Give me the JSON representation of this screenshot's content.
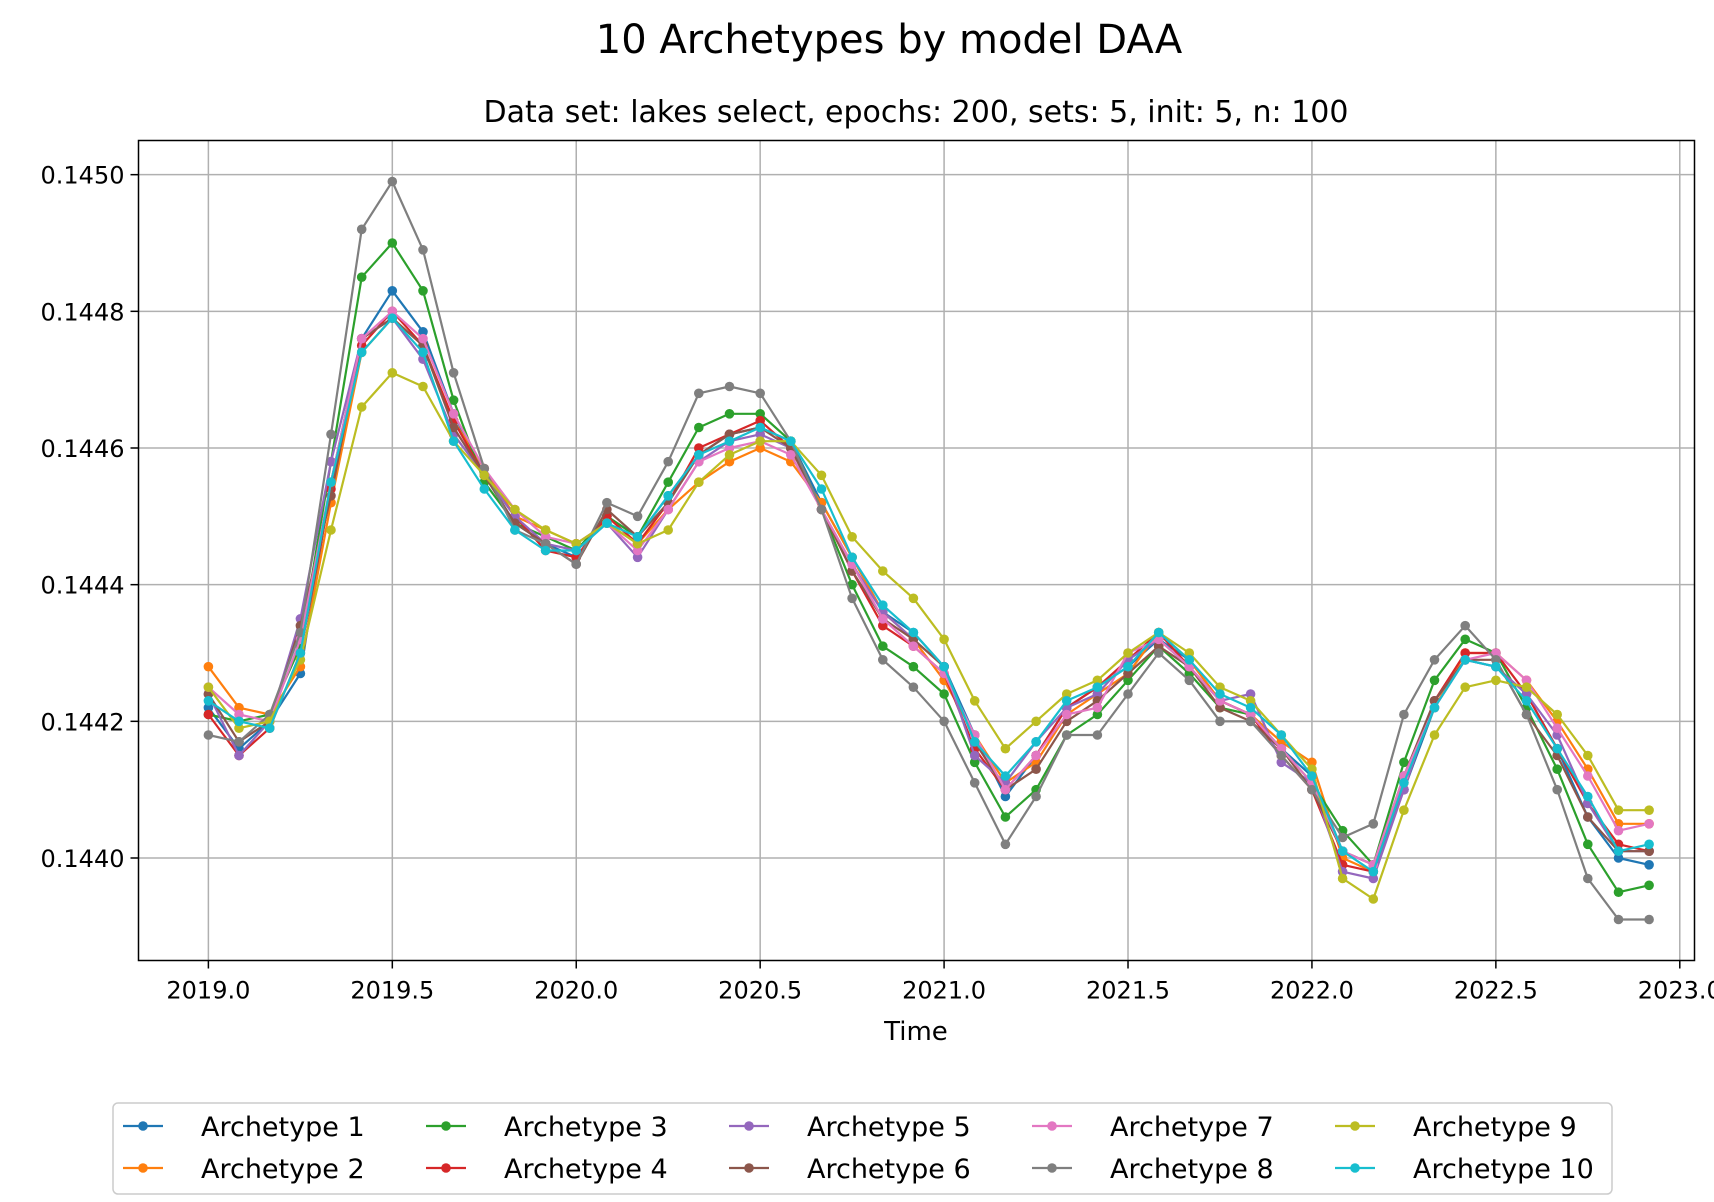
{
  "chart_data": {
    "type": "line",
    "title": "10 Archetypes by model DAA",
    "subtitle": "Data set: lakes select, epochs: 200, sets: 5, init: 5, n: 100",
    "xlabel": "Time",
    "ylabel": "",
    "xlim": [
      2018.81,
      2023.04
    ],
    "ylim": [
      0.14385,
      0.14505
    ],
    "xticks": [
      "2019.0",
      "2019.5",
      "2020.0",
      "2020.5",
      "2021.0",
      "2021.5",
      "2022.0",
      "2022.5",
      "2023.0"
    ],
    "yticks": [
      "0.1440",
      "0.1442",
      "0.1444",
      "0.1446",
      "0.1448",
      "0.1450"
    ],
    "grid": true,
    "legend_position": "bottom-center",
    "x": [
      2019.0,
      2019.0833,
      2019.1667,
      2019.25,
      2019.3333,
      2019.4167,
      2019.5,
      2019.5833,
      2019.6667,
      2019.75,
      2019.8333,
      2019.9167,
      2020.0,
      2020.0833,
      2020.1667,
      2020.25,
      2020.3333,
      2020.4167,
      2020.5,
      2020.5833,
      2020.6667,
      2020.75,
      2020.8333,
      2020.9167,
      2021.0,
      2021.0833,
      2021.1667,
      2021.25,
      2021.3333,
      2021.4167,
      2021.5,
      2021.5833,
      2021.6667,
      2021.75,
      2021.8333,
      2021.9167,
      2022.0,
      2022.0833,
      2022.1667,
      2022.25,
      2022.3333,
      2022.4167,
      2022.5,
      2022.5833,
      2022.6667,
      2022.75,
      2022.8333,
      2022.9167
    ],
    "series": [
      {
        "name": "Archetype 1",
        "color": "#1f77b4",
        "values": [
          0.14422,
          0.14416,
          0.1442,
          0.14427,
          0.14455,
          0.14476,
          0.14483,
          0.14477,
          0.14465,
          0.14456,
          0.14449,
          0.14446,
          0.14444,
          0.1445,
          0.14447,
          0.14453,
          0.14459,
          0.14462,
          0.14463,
          0.14461,
          0.14452,
          0.14444,
          0.14436,
          0.14433,
          0.14428,
          0.14418,
          0.14409,
          0.14415,
          0.14422,
          0.14425,
          0.14428,
          0.14432,
          0.14429,
          0.14423,
          0.14421,
          0.14416,
          0.14412,
          0.14401,
          0.14399,
          0.1441,
          0.14422,
          0.14429,
          0.14428,
          0.14424,
          0.14416,
          0.14406,
          0.144,
          0.14399
        ]
      },
      {
        "name": "Archetype 2",
        "color": "#ff7f0e",
        "values": [
          0.14428,
          0.14422,
          0.14421,
          0.14428,
          0.14452,
          0.14474,
          0.14479,
          0.14475,
          0.14464,
          0.14457,
          0.1445,
          0.14448,
          0.14446,
          0.14449,
          0.14446,
          0.14451,
          0.14455,
          0.14458,
          0.1446,
          0.14458,
          0.14452,
          0.14444,
          0.14436,
          0.14432,
          0.14426,
          0.14418,
          0.14411,
          0.14414,
          0.14421,
          0.14424,
          0.14427,
          0.14433,
          0.14429,
          0.14423,
          0.14421,
          0.14417,
          0.14414,
          0.144,
          0.14398,
          0.14411,
          0.14422,
          0.1443,
          0.1443,
          0.14426,
          0.1442,
          0.14413,
          0.14405,
          0.14405
        ]
      },
      {
        "name": "Archetype 3",
        "color": "#2ca02c",
        "values": [
          0.14421,
          0.1442,
          0.14421,
          0.14431,
          0.14458,
          0.14485,
          0.1449,
          0.14483,
          0.14467,
          0.14455,
          0.14449,
          0.14447,
          0.14445,
          0.1445,
          0.14447,
          0.14455,
          0.14463,
          0.14465,
          0.14465,
          0.14461,
          0.14451,
          0.1444,
          0.14431,
          0.14428,
          0.14424,
          0.14414,
          0.14406,
          0.1441,
          0.14418,
          0.14421,
          0.14426,
          0.14431,
          0.14427,
          0.14422,
          0.14421,
          0.14416,
          0.14411,
          0.14404,
          0.14399,
          0.14414,
          0.14426,
          0.14432,
          0.1443,
          0.14422,
          0.14413,
          0.14402,
          0.14395,
          0.14396
        ]
      },
      {
        "name": "Archetype 4",
        "color": "#d62728",
        "values": [
          0.14421,
          0.14415,
          0.14419,
          0.1443,
          0.14454,
          0.14475,
          0.1448,
          0.14475,
          0.14464,
          0.14456,
          0.1445,
          0.14445,
          0.14444,
          0.1445,
          0.14446,
          0.14452,
          0.1446,
          0.14462,
          0.14464,
          0.1446,
          0.14451,
          0.14442,
          0.14434,
          0.14431,
          0.14427,
          0.14416,
          0.1441,
          0.14415,
          0.14422,
          0.14425,
          0.14429,
          0.14433,
          0.14428,
          0.14423,
          0.14421,
          0.14415,
          0.1441,
          0.14399,
          0.14398,
          0.1441,
          0.14423,
          0.1443,
          0.1443,
          0.14424,
          0.14416,
          0.14408,
          0.14402,
          0.14401
        ]
      },
      {
        "name": "Archetype 5",
        "color": "#9467bd",
        "values": [
          0.14424,
          0.14415,
          0.1442,
          0.14435,
          0.14458,
          0.14476,
          0.14479,
          0.14473,
          0.14462,
          0.14456,
          0.1445,
          0.14446,
          0.14445,
          0.14449,
          0.14444,
          0.14451,
          0.14458,
          0.14461,
          0.14462,
          0.1446,
          0.14451,
          0.14443,
          0.14436,
          0.14432,
          0.14428,
          0.14415,
          0.14411,
          0.14417,
          0.14422,
          0.14424,
          0.14429,
          0.14432,
          0.14428,
          0.14423,
          0.14424,
          0.14414,
          0.14411,
          0.14398,
          0.14397,
          0.1441,
          0.14423,
          0.14429,
          0.14428,
          0.14424,
          0.14418,
          0.14408,
          0.14401,
          0.14401
        ]
      },
      {
        "name": "Archetype 6",
        "color": "#8c564b",
        "values": [
          0.14424,
          0.14417,
          0.1442,
          0.14434,
          0.14453,
          0.14476,
          0.14479,
          0.14475,
          0.14463,
          0.14456,
          0.14449,
          0.14446,
          0.14443,
          0.14451,
          0.14447,
          0.14452,
          0.14459,
          0.14462,
          0.14463,
          0.1446,
          0.14451,
          0.14442,
          0.14435,
          0.14432,
          0.14428,
          0.14417,
          0.1441,
          0.14413,
          0.1442,
          0.14423,
          0.14427,
          0.14431,
          0.14428,
          0.14422,
          0.1442,
          0.14416,
          0.1441,
          0.14401,
          0.14399,
          0.14412,
          0.14423,
          0.14429,
          0.14429,
          0.14421,
          0.14415,
          0.14406,
          0.14401,
          0.14401
        ]
      },
      {
        "name": "Archetype 7",
        "color": "#e377c2",
        "values": [
          0.14425,
          0.14421,
          0.1442,
          0.14432,
          0.14455,
          0.14476,
          0.1448,
          0.14476,
          0.14465,
          0.14457,
          0.14451,
          0.14447,
          0.14446,
          0.14449,
          0.14445,
          0.14451,
          0.14458,
          0.1446,
          0.14461,
          0.14459,
          0.14451,
          0.14443,
          0.14435,
          0.14431,
          0.14427,
          0.14418,
          0.1441,
          0.14415,
          0.14421,
          0.14422,
          0.1443,
          0.14432,
          0.14428,
          0.14423,
          0.14421,
          0.14416,
          0.14411,
          0.14401,
          0.14399,
          0.14412,
          0.14422,
          0.14429,
          0.1443,
          0.14426,
          0.14419,
          0.14412,
          0.14404,
          0.14405
        ]
      },
      {
        "name": "Archetype 8",
        "color": "#7f7f7f",
        "values": [
          0.14418,
          0.14417,
          0.14421,
          0.14433,
          0.14462,
          0.14492,
          0.14499,
          0.14489,
          0.14471,
          0.14457,
          0.14448,
          0.14446,
          0.14443,
          0.14452,
          0.1445,
          0.14458,
          0.14468,
          0.14469,
          0.14468,
          0.14461,
          0.14451,
          0.14438,
          0.14429,
          0.14425,
          0.1442,
          0.14411,
          0.14402,
          0.14409,
          0.14418,
          0.14418,
          0.14424,
          0.1443,
          0.14426,
          0.1442,
          0.1442,
          0.14415,
          0.1441,
          0.14403,
          0.14405,
          0.14421,
          0.14429,
          0.14434,
          0.14429,
          0.14421,
          0.1441,
          0.14397,
          0.14391,
          0.14391
        ]
      },
      {
        "name": "Archetype 9",
        "color": "#bcbd22",
        "values": [
          0.14425,
          0.14419,
          0.1442,
          0.14429,
          0.14448,
          0.14466,
          0.14471,
          0.14469,
          0.14461,
          0.14456,
          0.14451,
          0.14448,
          0.14446,
          0.14449,
          0.14446,
          0.14448,
          0.14455,
          0.14459,
          0.14461,
          0.14461,
          0.14456,
          0.14447,
          0.14442,
          0.14438,
          0.14432,
          0.14423,
          0.14416,
          0.1442,
          0.14424,
          0.14426,
          0.1443,
          0.14433,
          0.1443,
          0.14425,
          0.14423,
          0.14418,
          0.14413,
          0.14397,
          0.14394,
          0.14407,
          0.14418,
          0.14425,
          0.14426,
          0.14425,
          0.14421,
          0.14415,
          0.14407,
          0.14407
        ]
      },
      {
        "name": "Archetype 10",
        "color": "#17becf",
        "values": [
          0.14423,
          0.1442,
          0.14419,
          0.1443,
          0.14455,
          0.14474,
          0.14479,
          0.14474,
          0.14461,
          0.14454,
          0.14448,
          0.14445,
          0.14445,
          0.14449,
          0.14447,
          0.14453,
          0.14459,
          0.14461,
          0.14463,
          0.14461,
          0.14454,
          0.14444,
          0.14437,
          0.14433,
          0.14428,
          0.14417,
          0.14412,
          0.14417,
          0.14423,
          0.14425,
          0.14428,
          0.14433,
          0.14429,
          0.14424,
          0.14422,
          0.14418,
          0.14412,
          0.14401,
          0.14398,
          0.14411,
          0.14422,
          0.14429,
          0.14428,
          0.14423,
          0.14416,
          0.14409,
          0.14401,
          0.14402
        ]
      }
    ]
  }
}
